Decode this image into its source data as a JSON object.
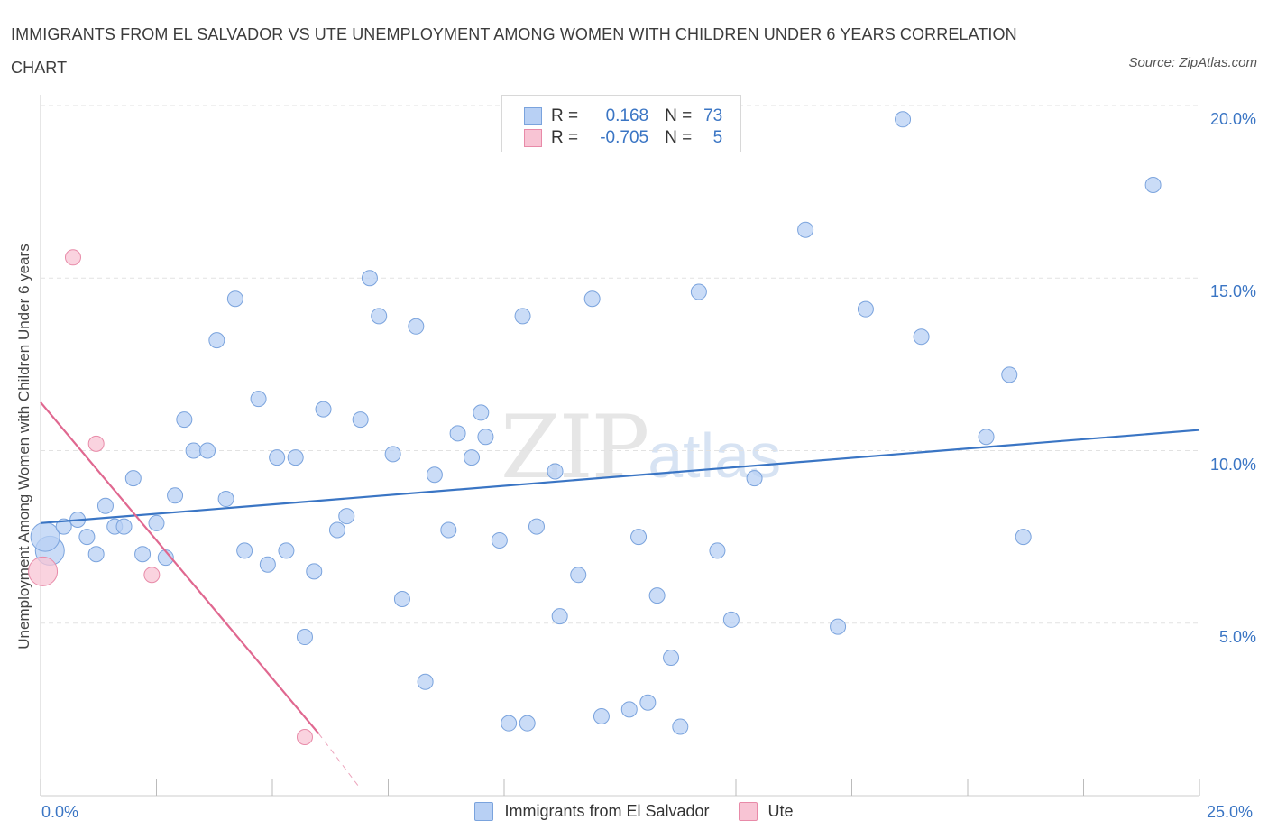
{
  "header": {
    "title": "IMMIGRANTS FROM EL SALVADOR VS UTE UNEMPLOYMENT AMONG WOMEN WITH CHILDREN UNDER 6 YEARS CORRELATION CHART",
    "source": "Source: ZipAtlas.com"
  },
  "watermark": {
    "zip": "ZIP",
    "atlas": "atlas"
  },
  "legend_top": {
    "rows": [
      {
        "r_label": "R =",
        "r_value": "0.168",
        "n_label": "N =",
        "n_value": "73",
        "color": "#b8d0f4"
      },
      {
        "r_label": "R =",
        "r_value": "-0.705",
        "n_label": "N =",
        "n_value": "5",
        "color": "#f8c4d4"
      }
    ]
  },
  "legend_bottom": {
    "items": [
      {
        "label": "Immigrants from El Salvador",
        "color": "#b8d0f4"
      },
      {
        "label": "Ute",
        "color": "#f8c4d4"
      }
    ]
  },
  "axis": {
    "x_min_label": "0.0%",
    "x_max_label": "25.0%",
    "y_ticks": [
      "5.0%",
      "10.0%",
      "15.0%",
      "20.0%"
    ]
  },
  "chart_data": {
    "type": "scatter",
    "title": "IMMIGRANTS FROM EL SALVADOR VS UTE UNEMPLOYMENT AMONG WOMEN WITH CHILDREN UNDER 6 YEARS CORRELATION CHART",
    "xlabel": "",
    "ylabel": "Unemployment Among Women with Children Under 6 years",
    "xlim": [
      0,
      25
    ],
    "ylim": [
      0,
      20
    ],
    "grid": true,
    "legend_position": "top-center",
    "series": [
      {
        "name": "Immigrants from El Salvador",
        "color": "#3a75c4",
        "fill": "#b8d0f4",
        "trend": {
          "x": [
            0,
            25
          ],
          "y": [
            7.9,
            10.6
          ]
        },
        "points": [
          {
            "x": 0.2,
            "y": 7.1,
            "big": true
          },
          {
            "x": 0.1,
            "y": 7.5,
            "big": true
          },
          {
            "x": 0.5,
            "y": 7.8
          },
          {
            "x": 0.8,
            "y": 8.0
          },
          {
            "x": 1.0,
            "y": 7.5
          },
          {
            "x": 1.2,
            "y": 7.0
          },
          {
            "x": 1.4,
            "y": 8.4
          },
          {
            "x": 1.6,
            "y": 7.8
          },
          {
            "x": 1.8,
            "y": 7.8
          },
          {
            "x": 2.0,
            "y": 9.2
          },
          {
            "x": 2.2,
            "y": 7.0
          },
          {
            "x": 2.5,
            "y": 7.9
          },
          {
            "x": 2.7,
            "y": 6.9
          },
          {
            "x": 2.9,
            "y": 8.7
          },
          {
            "x": 3.1,
            "y": 10.9
          },
          {
            "x": 3.3,
            "y": 10.0
          },
          {
            "x": 3.6,
            "y": 10.0
          },
          {
            "x": 3.8,
            "y": 13.2
          },
          {
            "x": 4.0,
            "y": 8.6
          },
          {
            "x": 4.2,
            "y": 14.4
          },
          {
            "x": 4.4,
            "y": 7.1
          },
          {
            "x": 4.7,
            "y": 11.5
          },
          {
            "x": 4.9,
            "y": 6.7
          },
          {
            "x": 5.1,
            "y": 9.8
          },
          {
            "x": 5.3,
            "y": 7.1
          },
          {
            "x": 5.5,
            "y": 9.8
          },
          {
            "x": 5.7,
            "y": 4.6
          },
          {
            "x": 5.9,
            "y": 6.5
          },
          {
            "x": 6.1,
            "y": 11.2
          },
          {
            "x": 6.4,
            "y": 7.7
          },
          {
            "x": 6.6,
            "y": 8.1
          },
          {
            "x": 6.9,
            "y": 10.9
          },
          {
            "x": 7.1,
            "y": 15.0
          },
          {
            "x": 7.3,
            "y": 13.9
          },
          {
            "x": 7.6,
            "y": 9.9
          },
          {
            "x": 7.8,
            "y": 5.7
          },
          {
            "x": 8.1,
            "y": 13.6
          },
          {
            "x": 8.3,
            "y": 3.3
          },
          {
            "x": 8.5,
            "y": 9.3
          },
          {
            "x": 8.8,
            "y": 7.7
          },
          {
            "x": 9.0,
            "y": 10.5
          },
          {
            "x": 9.3,
            "y": 9.8
          },
          {
            "x": 9.5,
            "y": 11.1
          },
          {
            "x": 9.6,
            "y": 10.4
          },
          {
            "x": 9.9,
            "y": 7.4
          },
          {
            "x": 10.1,
            "y": 2.1
          },
          {
            "x": 10.4,
            "y": 13.9
          },
          {
            "x": 10.5,
            "y": 2.1
          },
          {
            "x": 10.7,
            "y": 7.8
          },
          {
            "x": 11.1,
            "y": 9.4
          },
          {
            "x": 11.2,
            "y": 5.2
          },
          {
            "x": 11.6,
            "y": 6.4
          },
          {
            "x": 11.9,
            "y": 14.4
          },
          {
            "x": 12.1,
            "y": 2.3
          },
          {
            "x": 12.7,
            "y": 2.5
          },
          {
            "x": 12.9,
            "y": 7.5
          },
          {
            "x": 13.1,
            "y": 2.7
          },
          {
            "x": 13.3,
            "y": 5.8
          },
          {
            "x": 13.6,
            "y": 4.0
          },
          {
            "x": 13.8,
            "y": 2.0
          },
          {
            "x": 14.2,
            "y": 14.6
          },
          {
            "x": 14.6,
            "y": 7.1
          },
          {
            "x": 14.9,
            "y": 5.1
          },
          {
            "x": 15.4,
            "y": 9.2
          },
          {
            "x": 16.5,
            "y": 16.4
          },
          {
            "x": 17.2,
            "y": 4.9
          },
          {
            "x": 17.8,
            "y": 14.1
          },
          {
            "x": 18.6,
            "y": 19.6
          },
          {
            "x": 19.0,
            "y": 13.3
          },
          {
            "x": 20.4,
            "y": 10.4
          },
          {
            "x": 20.9,
            "y": 12.2
          },
          {
            "x": 21.2,
            "y": 7.5
          },
          {
            "x": 24.0,
            "y": 17.7
          }
        ]
      },
      {
        "name": "Ute",
        "color": "#e06890",
        "fill": "#f8c4d4",
        "trend": {
          "x": [
            0,
            6.0
          ],
          "y": [
            11.4,
            1.8
          ],
          "dashed_to": [
            6.9,
            0.2
          ]
        },
        "points": [
          {
            "x": 0.05,
            "y": 6.5,
            "big": true
          },
          {
            "x": 0.7,
            "y": 15.6
          },
          {
            "x": 1.2,
            "y": 10.2
          },
          {
            "x": 2.4,
            "y": 6.4
          },
          {
            "x": 5.7,
            "y": 1.7
          }
        ]
      }
    ]
  }
}
